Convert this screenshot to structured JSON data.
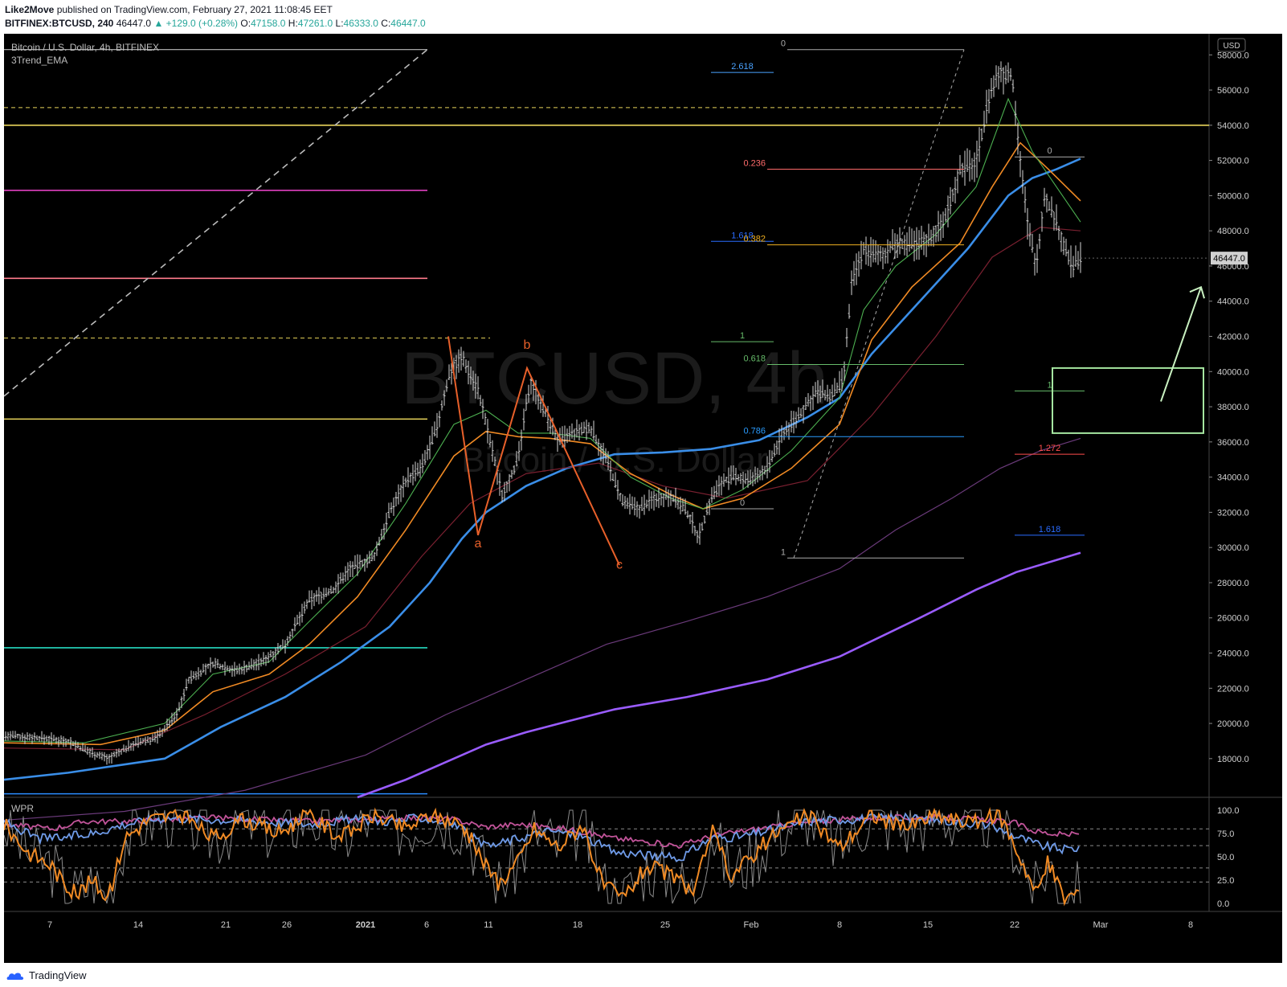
{
  "header": {
    "publisher": "Like2Move",
    "published_text": "published on TradingView.com, February 27, 2021 11:08:45 EET",
    "symbol_line": "BITFINEX:BTCUSD, 240",
    "last_price": "46447.0",
    "change": "▲ +129.0 (+0.28%)",
    "o_label": "O:",
    "o_value": "47158.0",
    "h_label": "H:",
    "h_value": "47261.0",
    "l_label": "L:",
    "l_value": "46333.0",
    "c_label": "C:",
    "c_value": "46447.0"
  },
  "chart_data": {
    "type": "candlestick",
    "title": "Bitcoin / U.S. Dollar, 4h, BITFINEX",
    "indicator_name": "3Trend_EMA",
    "watermark_symbol": "BTCUSD, 4h",
    "watermark_name": "Bitcoin / U.S. Dollar",
    "currency": "USD",
    "last_price_label": "46447.0",
    "y_range": [
      15800,
      59200
    ],
    "y_ticks": [
      "58000.0",
      "56000.0",
      "54000.0",
      "52000.0",
      "50000.0",
      "48000.0",
      "46000.0",
      "44000.0",
      "42000.0",
      "40000.0",
      "38000.0",
      "36000.0",
      "34000.0",
      "32000.0",
      "30000.0",
      "28000.0",
      "26000.0",
      "24000.0",
      "22000.0",
      "20000.0",
      "18000.0"
    ],
    "x_ticks": [
      "7",
      "14",
      "21",
      "26",
      "2021",
      "6",
      "11",
      "18",
      "25",
      "Feb",
      "8",
      "15",
      "22",
      "Mar",
      "8"
    ],
    "price_path": [
      [
        0,
        19300
      ],
      [
        40,
        19200
      ],
      [
        80,
        19000
      ],
      [
        100,
        18500
      ],
      [
        130,
        18000
      ],
      [
        160,
        18800
      ],
      [
        190,
        19200
      ],
      [
        215,
        20500
      ],
      [
        230,
        22500
      ],
      [
        260,
        23400
      ],
      [
        290,
        23000
      ],
      [
        320,
        23500
      ],
      [
        350,
        24500
      ],
      [
        380,
        27000
      ],
      [
        410,
        27600
      ],
      [
        430,
        28800
      ],
      [
        460,
        29400
      ],
      [
        480,
        32000
      ],
      [
        500,
        33800
      ],
      [
        520,
        34500
      ],
      [
        540,
        37000
      ],
      [
        555,
        40000
      ],
      [
        570,
        40800
      ],
      [
        590,
        39000
      ],
      [
        605,
        36000
      ],
      [
        620,
        33000
      ],
      [
        640,
        35000
      ],
      [
        655,
        39500
      ],
      [
        670,
        38000
      ],
      [
        690,
        36000
      ],
      [
        710,
        36500
      ],
      [
        730,
        36800
      ],
      [
        750,
        35000
      ],
      [
        770,
        32500
      ],
      [
        790,
        32200
      ],
      [
        810,
        32800
      ],
      [
        830,
        33000
      ],
      [
        850,
        32000
      ],
      [
        865,
        30600
      ],
      [
        880,
        32800
      ],
      [
        895,
        33800
      ],
      [
        910,
        34000
      ],
      [
        930,
        33800
      ],
      [
        950,
        34500
      ],
      [
        970,
        36500
      ],
      [
        990,
        37500
      ],
      [
        1010,
        38800
      ],
      [
        1030,
        38600
      ],
      [
        1045,
        39500
      ],
      [
        1055,
        45000
      ],
      [
        1070,
        47000
      ],
      [
        1090,
        46500
      ],
      [
        1110,
        47300
      ],
      [
        1130,
        47200
      ],
      [
        1150,
        47500
      ],
      [
        1170,
        48500
      ],
      [
        1190,
        51500
      ],
      [
        1210,
        51800
      ],
      [
        1225,
        55500
      ],
      [
        1240,
        57000
      ],
      [
        1255,
        56800
      ],
      [
        1265,
        52000
      ],
      [
        1275,
        48000
      ],
      [
        1285,
        46000
      ],
      [
        1295,
        50000
      ],
      [
        1310,
        48500
      ],
      [
        1320,
        47000
      ],
      [
        1330,
        46000
      ],
      [
        1340,
        46447
      ]
    ],
    "ema_fast": [
      [
        0,
        19000
      ],
      [
        100,
        18900
      ],
      [
        200,
        20000
      ],
      [
        260,
        22800
      ],
      [
        330,
        23500
      ],
      [
        380,
        25800
      ],
      [
        440,
        28500
      ],
      [
        500,
        32500
      ],
      [
        560,
        37000
      ],
      [
        600,
        37800
      ],
      [
        640,
        36500
      ],
      [
        680,
        36500
      ],
      [
        730,
        36200
      ],
      [
        780,
        34000
      ],
      [
        830,
        32800
      ],
      [
        870,
        32200
      ],
      [
        920,
        33300
      ],
      [
        980,
        35500
      ],
      [
        1040,
        38500
      ],
      [
        1070,
        43500
      ],
      [
        1110,
        46000
      ],
      [
        1160,
        47800
      ],
      [
        1210,
        50500
      ],
      [
        1250,
        55500
      ],
      [
        1280,
        52500
      ],
      [
        1310,
        50500
      ],
      [
        1340,
        48500
      ]
    ],
    "ema_slow": [
      [
        0,
        18900
      ],
      [
        120,
        18800
      ],
      [
        200,
        19600
      ],
      [
        260,
        21800
      ],
      [
        330,
        22800
      ],
      [
        380,
        24500
      ],
      [
        440,
        27200
      ],
      [
        500,
        31000
      ],
      [
        560,
        35200
      ],
      [
        600,
        36600
      ],
      [
        640,
        36300
      ],
      [
        680,
        36200
      ],
      [
        730,
        35900
      ],
      [
        780,
        34200
      ],
      [
        830,
        33000
      ],
      [
        870,
        32200
      ],
      [
        920,
        32800
      ],
      [
        980,
        34500
      ],
      [
        1040,
        37000
      ],
      [
        1080,
        41800
      ],
      [
        1130,
        44800
      ],
      [
        1190,
        47300
      ],
      [
        1230,
        50500
      ],
      [
        1265,
        53000
      ],
      [
        1300,
        51500
      ],
      [
        1340,
        49700
      ]
    ],
    "ema_mid_faint": [
      [
        0,
        18600
      ],
      [
        150,
        18500
      ],
      [
        250,
        20500
      ],
      [
        350,
        22800
      ],
      [
        450,
        25500
      ],
      [
        520,
        29500
      ],
      [
        580,
        32500
      ],
      [
        650,
        34200
      ],
      [
        740,
        34800
      ],
      [
        820,
        33500
      ],
      [
        900,
        32800
      ],
      [
        1000,
        33800
      ],
      [
        1080,
        37500
      ],
      [
        1160,
        42000
      ],
      [
        1230,
        46500
      ],
      [
        1290,
        48200
      ],
      [
        1340,
        48000
      ]
    ],
    "ema_blue": [
      [
        0,
        16800
      ],
      [
        80,
        17200
      ],
      [
        200,
        18000
      ],
      [
        270,
        19800
      ],
      [
        350,
        21500
      ],
      [
        420,
        23500
      ],
      [
        480,
        25500
      ],
      [
        530,
        28000
      ],
      [
        570,
        30500
      ],
      [
        600,
        32000
      ],
      [
        650,
        33500
      ],
      [
        700,
        34500
      ],
      [
        760,
        35300
      ],
      [
        820,
        35400
      ],
      [
        880,
        35600
      ],
      [
        940,
        36100
      ],
      [
        1000,
        37400
      ],
      [
        1040,
        38500
      ],
      [
        1080,
        41000
      ],
      [
        1140,
        44000
      ],
      [
        1200,
        47000
      ],
      [
        1250,
        50000
      ],
      [
        1280,
        51000
      ],
      [
        1310,
        51500
      ],
      [
        1340,
        52100
      ]
    ],
    "ema_purple_faint": [
      [
        0,
        14500
      ],
      [
        150,
        15000
      ],
      [
        300,
        16200
      ],
      [
        450,
        18200
      ],
      [
        550,
        20500
      ],
      [
        650,
        22500
      ],
      [
        750,
        24500
      ],
      [
        850,
        25800
      ],
      [
        950,
        27200
      ],
      [
        1040,
        28800
      ],
      [
        1110,
        31000
      ],
      [
        1180,
        32800
      ],
      [
        1240,
        34500
      ],
      [
        1290,
        35500
      ],
      [
        1340,
        36200
      ]
    ],
    "ema_purple": [
      [
        440,
        15800
      ],
      [
        500,
        16800
      ],
      [
        550,
        17800
      ],
      [
        600,
        18800
      ],
      [
        650,
        19500
      ],
      [
        700,
        20100
      ],
      [
        760,
        20800
      ],
      [
        850,
        21500
      ],
      [
        950,
        22500
      ],
      [
        1040,
        23800
      ],
      [
        1140,
        26000
      ],
      [
        1210,
        27600
      ],
      [
        1260,
        28600
      ],
      [
        1340,
        29700
      ]
    ],
    "horizontal_levels": [
      {
        "price": 54000,
        "color": "#e8d45a",
        "x_end": 1500,
        "style": "solid"
      },
      {
        "price": 55000,
        "color": "#e8d45a",
        "x_end": 1195,
        "style": "dash"
      },
      {
        "price": 50300,
        "color": "#e040c0",
        "x_end": 527,
        "style": "solid"
      },
      {
        "price": 45300,
        "color": "#ff7b8c",
        "x_end": 527,
        "style": "solid"
      },
      {
        "price": 41900,
        "color": "#e8d45a",
        "x_end": 605,
        "style": "dash"
      },
      {
        "price": 37300,
        "color": "#e8d45a",
        "x_end": 527,
        "style": "solid"
      },
      {
        "price": 24300,
        "color": "#26d9c0",
        "x_end": 527,
        "style": "solid"
      },
      {
        "price": 16000,
        "color": "#2a8cff",
        "x_end": 527,
        "style": "solid"
      }
    ],
    "fib_labels": [
      {
        "label": "0",
        "price": 58300,
        "color": "#aaaaaa",
        "x1": 975,
        "x2": 1195
      },
      {
        "label": "2.618",
        "price": 57000,
        "color": "#4aa3ff",
        "x1": 880,
        "x2": 958
      },
      {
        "label": "0.236",
        "price": 51500,
        "color": "#ff6b6b",
        "x1": 950,
        "x2": 1195
      },
      {
        "label": "1.618",
        "price": 47400,
        "color": "#2a6cff",
        "x1": 880,
        "x2": 958
      },
      {
        "label": "0.382",
        "price": 47200,
        "color": "#f0b020",
        "x1": 950,
        "x2": 1195
      },
      {
        "label": "1",
        "price": 41700,
        "color": "#66bb6a",
        "x1": 880,
        "x2": 958
      },
      {
        "label": "0.618",
        "price": 40400,
        "color": "#66bb6a",
        "x1": 950,
        "x2": 1195
      },
      {
        "label": "0.786",
        "price": 36300,
        "color": "#2a9cff",
        "x1": 950,
        "x2": 1195
      },
      {
        "label": "0",
        "price": 32200,
        "color": "#aaaaaa",
        "x1": 880,
        "x2": 958
      },
      {
        "label": "1",
        "price": 29400,
        "color": "#aaaaaa",
        "x1": 975,
        "x2": 1195
      },
      {
        "label": "0",
        "price": 52200,
        "color": "#aaaaaa",
        "x1": 1258,
        "x2": 1345
      },
      {
        "label": "1",
        "price": 38900,
        "color": "#66bb6a",
        "x1": 1258,
        "x2": 1345
      },
      {
        "label": "1.272",
        "price": 35300,
        "color": "#ff4d4d",
        "x1": 1258,
        "x2": 1345
      },
      {
        "label": "1.618",
        "price": 30700,
        "color": "#2a6cff",
        "x1": 1258,
        "x2": 1345
      }
    ],
    "wave_labels": [
      {
        "label": "a",
        "x": 590,
        "price": 30000
      },
      {
        "label": "b",
        "x": 651,
        "price": 41300
      },
      {
        "label": "c",
        "x": 766,
        "price": 28800
      }
    ],
    "wave_path": [
      [
        553,
        42000
      ],
      [
        590,
        30700
      ],
      [
        651,
        40200
      ],
      [
        766,
        29000
      ]
    ],
    "target_box": {
      "x1": 1305,
      "x2": 1493,
      "p_top": 40200,
      "p_bottom": 36500
    },
    "target_arrow": [
      [
        1440,
        38300
      ],
      [
        1490,
        44800
      ]
    ],
    "trend_dashed_1": [
      [
        0,
        38600
      ],
      [
        527,
        58300
      ]
    ],
    "trend_dashed_2": [
      [
        983,
        29400
      ],
      [
        1195,
        58300
      ]
    ],
    "wpr": {
      "name": "WPR",
      "y_ticks": [
        "100.0",
        "75.0",
        "50.0",
        "25.0",
        "0.0"
      ],
      "levels": [
        80,
        62,
        38,
        23
      ],
      "slow": [
        [
          0,
          85
        ],
        [
          60,
          80
        ],
        [
          100,
          88
        ],
        [
          150,
          88
        ],
        [
          200,
          90
        ],
        [
          260,
          92
        ],
        [
          320,
          90
        ],
        [
          380,
          88
        ],
        [
          440,
          90
        ],
        [
          520,
          92
        ],
        [
          560,
          90
        ],
        [
          600,
          82
        ],
        [
          640,
          85
        ],
        [
          700,
          80
        ],
        [
          760,
          70
        ],
        [
          800,
          66
        ],
        [
          840,
          62
        ],
        [
          880,
          72
        ],
        [
          920,
          78
        ],
        [
          980,
          85
        ],
        [
          1040,
          90
        ],
        [
          1100,
          92
        ],
        [
          1160,
          92
        ],
        [
          1220,
          90
        ],
        [
          1260,
          86
        ],
        [
          1280,
          78
        ],
        [
          1310,
          74
        ],
        [
          1340,
          74
        ]
      ],
      "mid": [
        [
          0,
          88
        ],
        [
          40,
          70
        ],
        [
          70,
          70
        ],
        [
          110,
          75
        ],
        [
          150,
          85
        ],
        [
          200,
          92
        ],
        [
          260,
          90
        ],
        [
          320,
          88
        ],
        [
          380,
          85
        ],
        [
          430,
          90
        ],
        [
          480,
          88
        ],
        [
          520,
          92
        ],
        [
          560,
          85
        ],
        [
          600,
          60
        ],
        [
          640,
          70
        ],
        [
          680,
          78
        ],
        [
          720,
          72
        ],
        [
          760,
          55
        ],
        [
          800,
          52
        ],
        [
          840,
          48
        ],
        [
          880,
          70
        ],
        [
          920,
          72
        ],
        [
          960,
          80
        ],
        [
          1000,
          88
        ],
        [
          1040,
          90
        ],
        [
          1100,
          92
        ],
        [
          1160,
          90
        ],
        [
          1220,
          85
        ],
        [
          1260,
          72
        ],
        [
          1290,
          62
        ],
        [
          1320,
          58
        ],
        [
          1340,
          60
        ]
      ],
      "fast": [
        [
          0,
          85
        ],
        [
          30,
          55
        ],
        [
          60,
          40
        ],
        [
          75,
          20
        ],
        [
          90,
          10
        ],
        [
          110,
          25
        ],
        [
          130,
          5
        ],
        [
          150,
          70
        ],
        [
          180,
          90
        ],
        [
          220,
          95
        ],
        [
          260,
          70
        ],
        [
          300,
          90
        ],
        [
          340,
          75
        ],
        [
          380,
          95
        ],
        [
          420,
          70
        ],
        [
          460,
          95
        ],
        [
          500,
          80
        ],
        [
          530,
          95
        ],
        [
          570,
          85
        ],
        [
          600,
          40
        ],
        [
          615,
          20
        ],
        [
          640,
          45
        ],
        [
          660,
          80
        ],
        [
          690,
          60
        ],
        [
          720,
          85
        ],
        [
          745,
          20
        ],
        [
          770,
          5
        ],
        [
          800,
          40
        ],
        [
          830,
          30
        ],
        [
          860,
          10
        ],
        [
          880,
          80
        ],
        [
          905,
          30
        ],
        [
          930,
          50
        ],
        [
          960,
          75
        ],
        [
          1000,
          95
        ],
        [
          1040,
          60
        ],
        [
          1080,
          95
        ],
        [
          1120,
          80
        ],
        [
          1160,
          95
        ],
        [
          1200,
          85
        ],
        [
          1240,
          95
        ],
        [
          1270,
          40
        ],
        [
          1285,
          10
        ],
        [
          1300,
          45
        ],
        [
          1320,
          5
        ],
        [
          1340,
          15
        ]
      ]
    }
  },
  "footer": {
    "brand": "TradingView"
  }
}
